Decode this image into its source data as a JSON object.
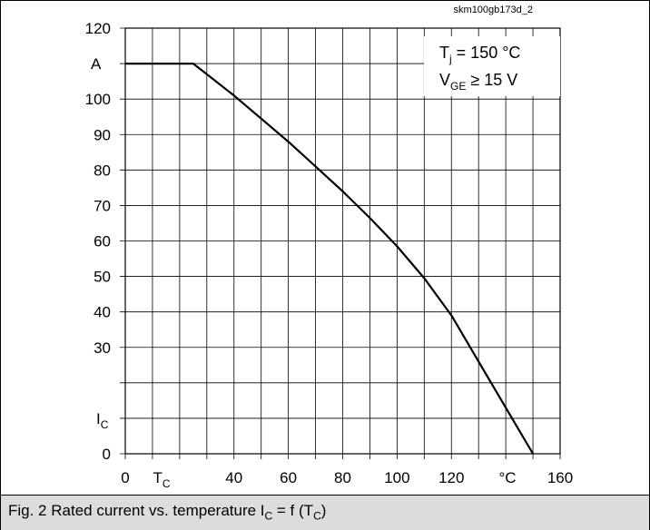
{
  "chart_data": {
    "type": "line",
    "source_id": "skm100gb173d_2",
    "x_unit_symbol": "T",
    "x_unit_symbol_sub": "C",
    "x_unit": "°C",
    "y_unit": "A",
    "y_symbol": "I",
    "y_symbol_sub": "C",
    "xlim": [
      0,
      160
    ],
    "ylim": [
      0,
      120
    ],
    "x_ticks": [
      {
        "value": 0,
        "label": "0"
      },
      {
        "value": 40,
        "label": "40"
      },
      {
        "value": 60,
        "label": "60"
      },
      {
        "value": 80,
        "label": "80"
      },
      {
        "value": 100,
        "label": "100"
      },
      {
        "value": 120,
        "label": "120"
      },
      {
        "value": 160,
        "label": "160"
      }
    ],
    "y_ticks": [
      {
        "value": 0,
        "label": "0"
      },
      {
        "value": 30,
        "label": "30"
      },
      {
        "value": 40,
        "label": "40"
      },
      {
        "value": 50,
        "label": "50"
      },
      {
        "value": 60,
        "label": "60"
      },
      {
        "value": 70,
        "label": "70"
      },
      {
        "value": 80,
        "label": "80"
      },
      {
        "value": 90,
        "label": "90"
      },
      {
        "value": 100,
        "label": "100"
      },
      {
        "value": 120,
        "label": "120"
      }
    ],
    "grid": true,
    "x_grid_step": 10,
    "y_grid_step": 10,
    "annotations": {
      "tj_prefix": "T",
      "tj_sub": "j",
      "tj_value": " = 150 °C",
      "vge_prefix": "V",
      "vge_sub": "GE",
      "vge_value": " ≥ 15 V"
    },
    "series": [
      {
        "x": [
          0,
          25,
          30,
          40,
          50,
          60,
          70,
          80,
          90,
          100,
          110,
          120,
          130,
          140,
          150
        ],
        "y": [
          110,
          110,
          107,
          101,
          94.5,
          88,
          81,
          74,
          66.5,
          58.5,
          49.5,
          39,
          26,
          13,
          0
        ]
      }
    ]
  },
  "caption": {
    "prefix": "Fig. 2 Rated current vs. temperature I",
    "sub1": "C",
    "middle": " = f (T",
    "sub2": "C",
    "suffix": ")"
  },
  "colors": {
    "line": "#000000",
    "grid": "#000000",
    "caption_background": "#dcdcdc"
  }
}
